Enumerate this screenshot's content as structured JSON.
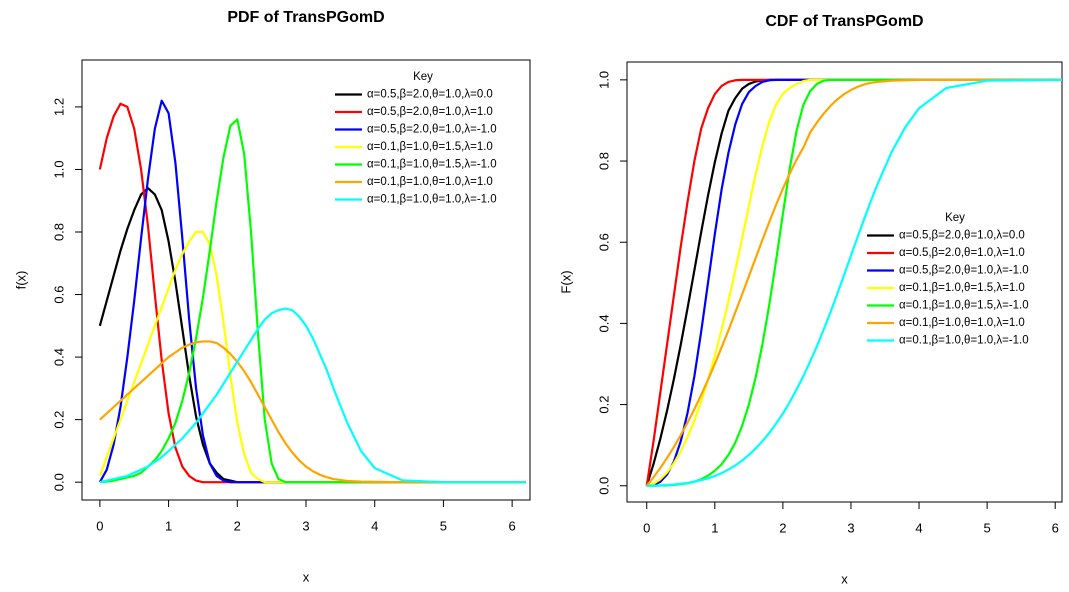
{
  "chart_data": [
    {
      "type": "line",
      "title": "PDF of TransPGomD",
      "xlabel": "x",
      "ylabel": "f(x)",
      "xlim": [
        -0.26,
        6.26
      ],
      "ylim": [
        -0.057,
        1.35
      ],
      "xticks": [
        0,
        1,
        2,
        3,
        4,
        5,
        6
      ],
      "yticks": [
        {
          "value": 0,
          "label": "0.0"
        },
        {
          "value": 0.2,
          "label": "0.2"
        },
        {
          "value": 0.4,
          "label": "0.4"
        },
        {
          "value": 0.6,
          "label": "0.6"
        },
        {
          "value": 0.8,
          "label": "0.8"
        },
        {
          "value": 1.0,
          "label": "1.0"
        },
        {
          "value": 1.2,
          "label": "1.2"
        }
      ],
      "grid": false,
      "legend": "topright",
      "legend_title": "Key",
      "x": [
        0,
        0.1,
        0.2,
        0.3,
        0.4,
        0.5,
        0.6,
        0.7,
        0.8,
        0.9,
        1.0,
        1.1,
        1.2,
        1.3,
        1.4,
        1.5,
        1.6,
        1.7,
        1.8,
        1.9,
        2.0,
        2.1,
        2.2,
        2.3,
        2.4,
        2.5,
        2.6,
        2.7,
        2.8,
        2.9,
        3.0,
        3.1,
        3.2,
        3.3,
        3.4,
        3.6,
        3.8,
        4.0,
        4.4,
        5.0,
        6.2
      ],
      "series": [
        {
          "name": "α=0.5,β=2.0,θ=1.0,λ=0.0",
          "color": "#000000",
          "values": [
            0.5,
            0.58,
            0.66,
            0.74,
            0.81,
            0.87,
            0.92,
            0.94,
            0.92,
            0.87,
            0.77,
            0.64,
            0.49,
            0.34,
            0.21,
            0.12,
            0.06,
            0.03,
            0.01,
            0.005,
            0,
            0,
            0,
            0,
            0,
            0,
            0,
            0,
            0,
            0,
            0,
            0,
            0,
            0,
            0,
            0,
            0,
            0,
            0,
            0,
            0
          ]
        },
        {
          "name": "α=0.5,β=2.0,θ=1.0,λ=1.0",
          "color": "#ff0000",
          "values": [
            1.0,
            1.1,
            1.17,
            1.21,
            1.2,
            1.13,
            1.0,
            0.82,
            0.6,
            0.39,
            0.22,
            0.11,
            0.05,
            0.02,
            0.005,
            0,
            0,
            0,
            0,
            0,
            0,
            0,
            0,
            0,
            0,
            0,
            0,
            0,
            0,
            0,
            0,
            0,
            0,
            0,
            0,
            0,
            0,
            0,
            0,
            0,
            0
          ]
        },
        {
          "name": "α=0.5,β=2.0,θ=1.0,λ=-1.0",
          "color": "#0000ff",
          "values": [
            0,
            0.04,
            0.12,
            0.24,
            0.4,
            0.58,
            0.78,
            0.97,
            1.13,
            1.22,
            1.18,
            1.02,
            0.78,
            0.52,
            0.3,
            0.15,
            0.06,
            0.02,
            0.005,
            0,
            0,
            0,
            0,
            0,
            0,
            0,
            0,
            0,
            0,
            0,
            0,
            0,
            0,
            0,
            0,
            0,
            0,
            0,
            0,
            0,
            0
          ]
        },
        {
          "name": "α=0.1,β=1.0,θ=1.5,λ=1.0",
          "color": "#ffff00",
          "values": [
            0.02,
            0.08,
            0.14,
            0.2,
            0.26,
            0.32,
            0.38,
            0.44,
            0.5,
            0.56,
            0.62,
            0.68,
            0.73,
            0.77,
            0.8,
            0.8,
            0.76,
            0.66,
            0.51,
            0.34,
            0.19,
            0.09,
            0.03,
            0.01,
            0,
            0,
            0,
            0,
            0,
            0,
            0,
            0,
            0,
            0,
            0,
            0,
            0,
            0,
            0,
            0,
            0
          ]
        },
        {
          "name": "α=0.1,β=1.0,θ=1.5,λ=-1.0",
          "color": "#00ff00",
          "values": [
            0,
            0.002,
            0.005,
            0.01,
            0.015,
            0.02,
            0.03,
            0.05,
            0.07,
            0.1,
            0.14,
            0.19,
            0.26,
            0.35,
            0.46,
            0.59,
            0.74,
            0.9,
            1.04,
            1.14,
            1.16,
            1.05,
            0.8,
            0.48,
            0.2,
            0.06,
            0.01,
            0,
            0,
            0,
            0,
            0,
            0,
            0,
            0,
            0,
            0,
            0,
            0,
            0,
            0
          ]
        },
        {
          "name": "α=0.1,β=1.0,θ=1.0,λ=1.0",
          "color": "#ffa500",
          "values": [
            0.2,
            0.22,
            0.24,
            0.26,
            0.28,
            0.3,
            0.32,
            0.34,
            0.36,
            0.38,
            0.4,
            0.415,
            0.43,
            0.44,
            0.447,
            0.45,
            0.45,
            0.445,
            0.43,
            0.41,
            0.385,
            0.355,
            0.32,
            0.28,
            0.24,
            0.2,
            0.16,
            0.125,
            0.095,
            0.07,
            0.05,
            0.035,
            0.024,
            0.016,
            0.01,
            0.004,
            0.002,
            0.001,
            0,
            0,
            0
          ]
        },
        {
          "name": "α=0.1,β=1.0,θ=1.0,λ=-1.0",
          "color": "#00ffff",
          "values": [
            0,
            0.005,
            0.01,
            0.015,
            0.02,
            0.03,
            0.04,
            0.05,
            0.065,
            0.08,
            0.1,
            0.12,
            0.14,
            0.165,
            0.19,
            0.22,
            0.25,
            0.28,
            0.315,
            0.35,
            0.385,
            0.42,
            0.455,
            0.49,
            0.52,
            0.54,
            0.55,
            0.555,
            0.55,
            0.53,
            0.5,
            0.46,
            0.41,
            0.36,
            0.3,
            0.19,
            0.1,
            0.045,
            0.006,
            0,
            0
          ]
        }
      ]
    },
    {
      "type": "line",
      "title": "CDF of TransPGomD",
      "xlabel": "x",
      "ylabel": "F(x)",
      "xlim": [
        -0.29,
        6.1
      ],
      "ylim": [
        -0.04,
        1.044
      ],
      "xticks": [
        0,
        1,
        2,
        3,
        4,
        5,
        6
      ],
      "yticks": [
        {
          "value": 0,
          "label": "0.0"
        },
        {
          "value": 0.2,
          "label": "0.2"
        },
        {
          "value": 0.4,
          "label": "0.4"
        },
        {
          "value": 0.6,
          "label": "0.6"
        },
        {
          "value": 0.8,
          "label": "0.8"
        },
        {
          "value": 1.0,
          "label": "1.0"
        }
      ],
      "grid": false,
      "legend": "right",
      "legend_title": "Key",
      "x": [
        0,
        0.1,
        0.2,
        0.3,
        0.4,
        0.5,
        0.6,
        0.7,
        0.8,
        0.9,
        1.0,
        1.1,
        1.2,
        1.3,
        1.4,
        1.5,
        1.6,
        1.7,
        1.8,
        1.9,
        2.0,
        2.1,
        2.2,
        2.3,
        2.4,
        2.5,
        2.6,
        2.7,
        2.8,
        2.9,
        3.0,
        3.1,
        3.2,
        3.3,
        3.4,
        3.6,
        3.8,
        4.0,
        4.4,
        5.0,
        6.2
      ],
      "series": [
        {
          "name": "α=0.5,β=2.0,θ=1.0,λ=0.0",
          "color": "#000000",
          "values": [
            0,
            0.054,
            0.116,
            0.186,
            0.264,
            0.348,
            0.438,
            0.531,
            0.625,
            0.715,
            0.797,
            0.868,
            0.924,
            0.955,
            0.978,
            0.99,
            0.996,
            0.999,
            1,
            1,
            1,
            1,
            1,
            1,
            1,
            1,
            1,
            1,
            1,
            1,
            1,
            1,
            1,
            1,
            1,
            1,
            1,
            1,
            1,
            1,
            1
          ]
        },
        {
          "name": "α=0.5,β=2.0,θ=1.0,λ=1.0",
          "color": "#ff0000",
          "values": [
            0,
            0.11,
            0.23,
            0.35,
            0.47,
            0.59,
            0.7,
            0.8,
            0.88,
            0.93,
            0.965,
            0.985,
            0.995,
            0.999,
            1,
            1,
            1,
            1,
            1,
            1,
            1,
            1,
            1,
            1,
            1,
            1,
            1,
            1,
            1,
            1,
            1,
            1,
            1,
            1,
            1,
            1,
            1,
            1,
            1,
            1,
            1
          ]
        },
        {
          "name": "α=0.5,β=2.0,θ=1.0,λ=-1.0",
          "color": "#0000ff",
          "values": [
            0,
            0.002,
            0.01,
            0.028,
            0.06,
            0.11,
            0.18,
            0.27,
            0.38,
            0.5,
            0.62,
            0.73,
            0.82,
            0.89,
            0.94,
            0.97,
            0.985,
            0.995,
            0.999,
            1,
            1,
            1,
            1,
            1,
            1,
            1,
            1,
            1,
            1,
            1,
            1,
            1,
            1,
            1,
            1,
            1,
            1,
            1,
            1,
            1,
            1
          ]
        },
        {
          "name": "α=0.1,β=1.0,θ=1.5,λ=1.0",
          "color": "#ffff00",
          "values": [
            0,
            0.005,
            0.016,
            0.033,
            0.056,
            0.085,
            0.12,
            0.161,
            0.208,
            0.261,
            0.32,
            0.385,
            0.455,
            0.53,
            0.609,
            0.689,
            0.767,
            0.838,
            0.897,
            0.939,
            0.966,
            0.98,
            0.99,
            0.997,
            1,
            1,
            1,
            1,
            1,
            1,
            1,
            1,
            1,
            1,
            1,
            1,
            1,
            1,
            1,
            1,
            1
          ]
        },
        {
          "name": "α=0.1,β=1.0,θ=1.5,λ=-1.0",
          "color": "#00ff00",
          "values": [
            0,
            0,
            0.0005,
            0.001,
            0.002,
            0.004,
            0.006,
            0.01,
            0.016,
            0.025,
            0.037,
            0.053,
            0.076,
            0.106,
            0.147,
            0.2,
            0.267,
            0.349,
            0.446,
            0.555,
            0.67,
            0.781,
            0.874,
            0.938,
            0.972,
            0.99,
            0.998,
            1,
            1,
            1,
            1,
            1,
            1,
            1,
            1,
            1,
            1,
            1,
            1,
            1,
            1
          ]
        },
        {
          "name": "α=0.1,β=1.0,θ=1.0,λ=1.0",
          "color": "#ffa500",
          "values": [
            0,
            0.021,
            0.044,
            0.069,
            0.096,
            0.125,
            0.156,
            0.189,
            0.224,
            0.261,
            0.3,
            0.341,
            0.383,
            0.427,
            0.471,
            0.516,
            0.561,
            0.606,
            0.65,
            0.692,
            0.732,
            0.769,
            0.803,
            0.833,
            0.87,
            0.895,
            0.917,
            0.936,
            0.952,
            0.965,
            0.975,
            0.983,
            0.989,
            0.993,
            0.995,
            0.998,
            0.999,
            1,
            1,
            1,
            1
          ]
        },
        {
          "name": "α=0.1,β=1.0,θ=1.0,λ=-1.0",
          "color": "#00ffff",
          "values": [
            0,
            0,
            0.001,
            0.002,
            0.003,
            0.005,
            0.007,
            0.01,
            0.014,
            0.018,
            0.024,
            0.031,
            0.04,
            0.05,
            0.062,
            0.076,
            0.092,
            0.11,
            0.13,
            0.153,
            0.178,
            0.206,
            0.237,
            0.27,
            0.306,
            0.344,
            0.385,
            0.428,
            0.473,
            0.52,
            0.567,
            0.614,
            0.66,
            0.705,
            0.747,
            0.823,
            0.884,
            0.93,
            0.98,
            0.998,
            1
          ]
        }
      ]
    }
  ]
}
